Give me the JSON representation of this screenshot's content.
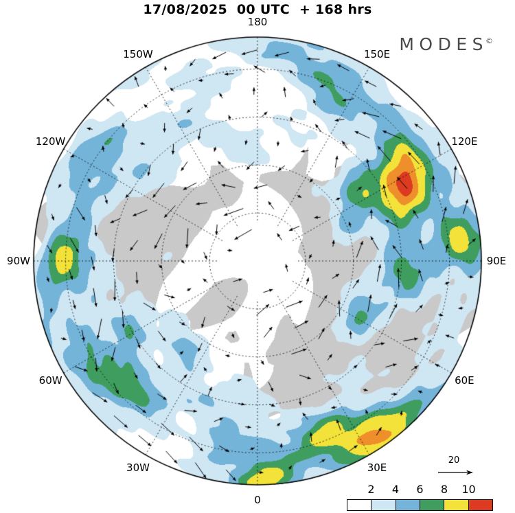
{
  "title": "17/08/2025  00 UTC  + 168 hrs",
  "logo": {
    "text": "MODES",
    "copyright": "©"
  },
  "map": {
    "lon_labels": [
      {
        "label": "180",
        "lon": 180
      },
      {
        "label": "150W",
        "lon": -150
      },
      {
        "label": "120W",
        "lon": -120
      },
      {
        "label": "90W",
        "lon": -90
      },
      {
        "label": "60W",
        "lon": -60
      },
      {
        "label": "30W",
        "lon": -30
      },
      {
        "label": "0",
        "lon": 0
      },
      {
        "label": "30E",
        "lon": 30
      },
      {
        "label": "60E",
        "lon": 60
      },
      {
        "label": "90E",
        "lon": 90
      },
      {
        "label": "120E",
        "lon": 120
      },
      {
        "label": "150E",
        "lon": 150
      }
    ],
    "land_color": "#c9c9c9",
    "ocean_color": "#ffffff"
  },
  "legend": {
    "ticks": [
      "2",
      "4",
      "6",
      "8",
      "10"
    ],
    "colors": [
      "#ffffff",
      "#cfe6f3",
      "#74b4d9",
      "#3f9e5f",
      "#f2e239",
      "#dc3b22"
    ],
    "reference_arrow_label": "20"
  }
}
